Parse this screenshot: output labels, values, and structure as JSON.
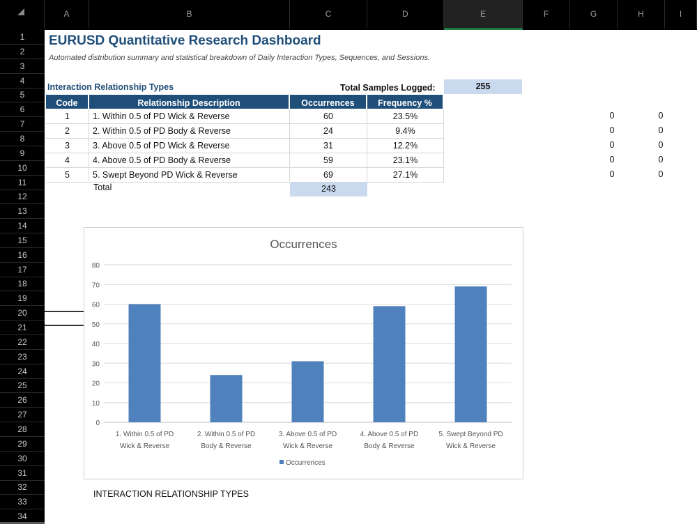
{
  "columns": [
    "A",
    "B",
    "C",
    "D",
    "E",
    "F",
    "G",
    "H",
    "I"
  ],
  "selected_column": "E",
  "rows": [
    "1",
    "2",
    "3",
    "4",
    "5",
    "6",
    "7",
    "8",
    "9",
    "10",
    "11",
    "12",
    "13",
    "14",
    "15",
    "16",
    "17",
    "18",
    "19",
    "20",
    "21",
    "22",
    "23",
    "24",
    "25",
    "26",
    "27",
    "28",
    "29",
    "30",
    "31",
    "32",
    "33",
    "34"
  ],
  "title": "EURUSD Quantitative Research Dashboard",
  "subtitle": "Automated distribution summary and statistical breakdown of Daily Interaction Types, Sequences, and Sessions.",
  "section_title": "Interaction Relationship Types",
  "samples_label": "Total Samples Logged:",
  "samples_value": "255",
  "table": {
    "headers": [
      "Code",
      "Relationship Description",
      "Occurrences",
      "Frequency %"
    ],
    "rows": [
      {
        "code": "1",
        "desc": "1. Within 0.5 of PD Wick & Reverse",
        "occ": "60",
        "freq": "23.5%"
      },
      {
        "code": "2",
        "desc": "2. Within 0.5 of PD Body & Reverse",
        "occ": "24",
        "freq": "9.4%"
      },
      {
        "code": "3",
        "desc": "3. Above 0.5 of PD Wick & Reverse",
        "occ": "31",
        "freq": "12.2%"
      },
      {
        "code": "4",
        "desc": "4. Above 0.5 of PD Body & Reverse",
        "occ": "59",
        "freq": "23.1%"
      },
      {
        "code": "5",
        "desc": "5. Swept Beyond PD Wick & Reverse",
        "occ": "69",
        "freq": "27.1%"
      }
    ],
    "total_label": "Total",
    "total_value": "243"
  },
  "side_values": {
    "g": [
      "0",
      "0",
      "0",
      "0",
      "0"
    ],
    "h": [
      "0",
      "0",
      "0",
      "0",
      "0"
    ]
  },
  "footer_label": "INTERACTION RELATIONSHIP TYPES",
  "colors": {
    "header_blue": "#1f4e79",
    "bar": "#4f81bd",
    "highlight": "#c9d9ee",
    "selected_col_underline": "#1e7a45"
  },
  "chart_data": {
    "type": "bar",
    "title": "Occurrences",
    "categories": [
      [
        "1. Within 0.5 of PD",
        "Wick & Reverse"
      ],
      [
        "2. Within 0.5 of PD",
        "Body & Reverse"
      ],
      [
        "3. Above 0.5 of PD",
        "Wick & Reverse"
      ],
      [
        "4. Above 0.5 of PD",
        "Body & Reverse"
      ],
      [
        "5. Swept Beyond PD",
        "Wick & Reverse"
      ]
    ],
    "series": [
      {
        "name": "Occurrences",
        "values": [
          60,
          24,
          31,
          59,
          69
        ]
      }
    ],
    "ylim": [
      0,
      80
    ],
    "yticks": [
      0,
      10,
      20,
      30,
      40,
      50,
      60,
      70,
      80
    ],
    "grid": true,
    "legend": "bottom"
  }
}
